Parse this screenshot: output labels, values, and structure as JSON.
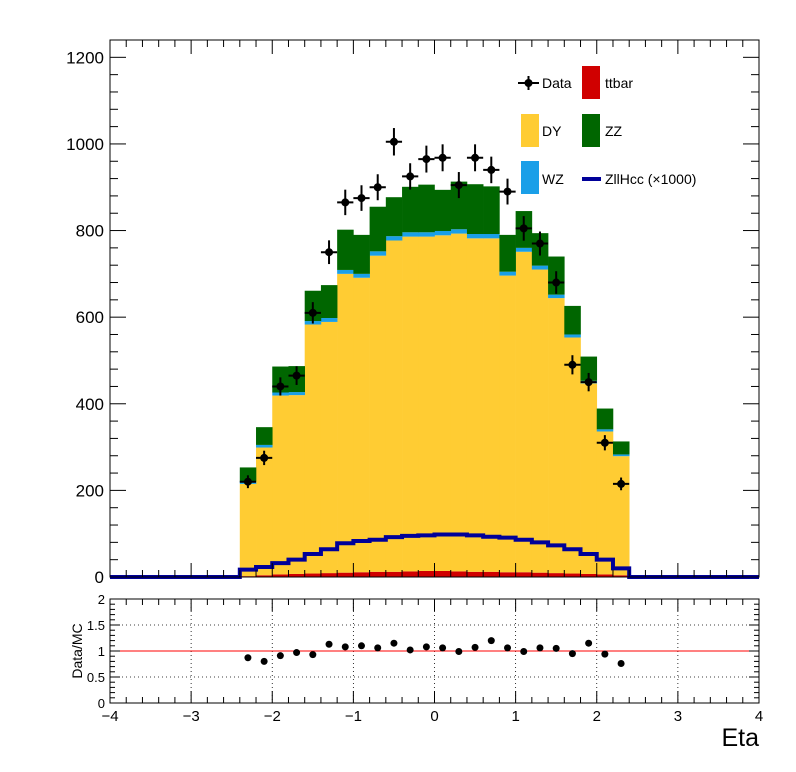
{
  "chart_data": [
    {
      "type": "bar",
      "subtype": "stacked-histogram",
      "x_edges": [
        -4.0,
        -3.8,
        -3.6,
        -3.4,
        -3.2,
        -3.0,
        -2.8,
        -2.6,
        -2.4,
        -2.2,
        -2.0,
        -1.8,
        -1.6,
        -1.4,
        -1.2,
        -1.0,
        -0.8,
        -0.6,
        -0.4,
        -0.2,
        0.0,
        0.2,
        0.4,
        0.6,
        0.8,
        1.0,
        1.2,
        1.4,
        1.6,
        1.8,
        2.0,
        2.2,
        2.4,
        2.6,
        2.8,
        3.0,
        3.2,
        3.4,
        3.6,
        3.8,
        4.0
      ],
      "series": [
        {
          "name": "ttbar",
          "color": "#d00000",
          "values": [
            0,
            0,
            0,
            0,
            0,
            0,
            0,
            0,
            2,
            4,
            6,
            7,
            8,
            9,
            10,
            11,
            12,
            12,
            13,
            14,
            14,
            13,
            12,
            12,
            11,
            11,
            10,
            9,
            8,
            7,
            6,
            4,
            0,
            0,
            0,
            0,
            0,
            0,
            0,
            0
          ]
        },
        {
          "name": "DY",
          "color": "#ffcc33",
          "values": [
            0,
            0,
            0,
            0,
            0,
            0,
            0,
            0,
            213,
            295,
            413,
            413,
            575,
            580,
            690,
            680,
            730,
            765,
            773,
            772,
            775,
            780,
            770,
            770,
            685,
            740,
            700,
            635,
            545,
            440,
            330,
            275,
            0,
            0,
            0,
            0,
            0,
            0,
            0,
            0
          ]
        },
        {
          "name": "WZ",
          "color": "#1a9fe8",
          "values": [
            0,
            0,
            0,
            0,
            0,
            0,
            0,
            0,
            5,
            6,
            7,
            7,
            8,
            9,
            9,
            9,
            10,
            10,
            10,
            10,
            10,
            10,
            10,
            10,
            9,
            9,
            9,
            8,
            7,
            6,
            5,
            4,
            0,
            0,
            0,
            0,
            0,
            0,
            0,
            0
          ]
        },
        {
          "name": "ZZ",
          "color": "#006600",
          "values": [
            0,
            0,
            0,
            0,
            0,
            0,
            0,
            0,
            33,
            41,
            60,
            60,
            70,
            76,
            93,
            90,
            103,
            90,
            105,
            110,
            95,
            110,
            115,
            110,
            85,
            85,
            75,
            88,
            66,
            56,
            48,
            30,
            0,
            0,
            0,
            0,
            0,
            0,
            0,
            0
          ]
        }
      ],
      "signal": {
        "name": "ZllHcc (×1000)",
        "color": "#000099",
        "values": [
          0,
          0,
          0,
          0,
          0,
          0,
          0,
          0,
          17,
          23,
          32,
          40,
          53,
          64,
          78,
          83,
          86,
          92,
          95,
          96,
          98,
          98,
          96,
          93,
          91,
          86,
          80,
          73,
          64,
          53,
          40,
          20,
          0,
          0,
          0,
          0,
          0,
          0,
          0,
          0
        ]
      },
      "data": {
        "name": "Data",
        "x": [
          -2.3,
          -2.1,
          -1.9,
          -1.7,
          -1.5,
          -1.3,
          -1.1,
          -0.9,
          -0.7,
          -0.5,
          -0.3,
          -0.1,
          0.1,
          0.3,
          0.5,
          0.7,
          0.9,
          1.1,
          1.3,
          1.5,
          1.7,
          1.9,
          2.1,
          2.3
        ],
        "y": [
          220,
          275,
          440,
          465,
          610,
          750,
          865,
          875,
          900,
          1005,
          925,
          965,
          968,
          905,
          968,
          940,
          890,
          805,
          770,
          680,
          490,
          450,
          310,
          215
        ]
      },
      "xlim": [
        -4,
        4
      ],
      "ylim": [
        0,
        1240
      ],
      "y_ticks": [
        "0",
        "200",
        "400",
        "600",
        "800",
        "1000",
        "1200"
      ],
      "legend_position": "top-right",
      "legend": [
        "Data",
        "ttbar",
        "DY",
        "ZZ",
        "WZ",
        "ZllHcc (×1000)"
      ]
    },
    {
      "type": "scatter",
      "x": [
        -2.3,
        -2.1,
        -1.9,
        -1.7,
        -1.5,
        -1.3,
        -1.1,
        -0.9,
        -0.7,
        -0.5,
        -0.3,
        -0.1,
        0.1,
        0.3,
        0.5,
        0.7,
        0.9,
        1.1,
        1.3,
        1.5,
        1.7,
        1.9,
        2.1,
        2.3
      ],
      "y": [
        0.87,
        0.8,
        0.91,
        0.97,
        0.93,
        1.13,
        1.08,
        1.1,
        1.06,
        1.15,
        1.02,
        1.08,
        1.06,
        0.99,
        1.07,
        1.2,
        1.06,
        0.99,
        1.06,
        1.05,
        0.95,
        1.15,
        0.94,
        0.76
      ],
      "ylabel": "Data/MC",
      "xlabel": "Eta",
      "ylim": [
        0,
        2
      ],
      "xlim": [
        -4,
        4
      ],
      "reference_line": 1,
      "reference_color": "#ff0000",
      "grid": true,
      "x_ticks": [
        "−4",
        "−3",
        "−2",
        "−1",
        "0",
        "1",
        "2",
        "3",
        "4"
      ],
      "y_ticks": [
        "0",
        "0.5",
        "1",
        "1.5",
        "2"
      ]
    }
  ]
}
